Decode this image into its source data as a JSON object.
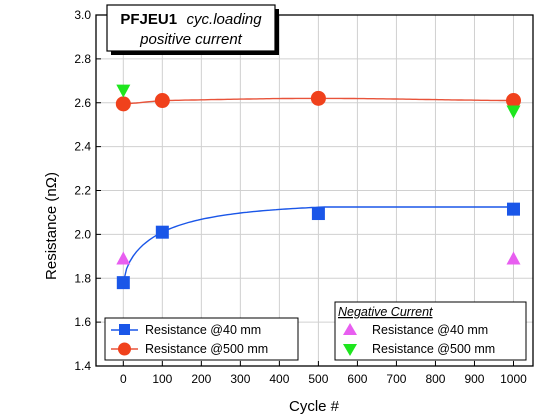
{
  "chart_data": {
    "type": "scatter",
    "title_bold": "PFJEU1",
    "title_italic_1": "cyc.loading",
    "title_italic_2": "positive current",
    "xlabel": "Cycle #",
    "ylabel": "Resistance (nΩ)",
    "xlim": [
      -70,
      1050
    ],
    "ylim": [
      1.4,
      3.0
    ],
    "x_ticks": [
      0,
      100,
      200,
      300,
      400,
      500,
      600,
      700,
      800,
      900,
      1000
    ],
    "y_ticks": [
      1.4,
      1.6,
      1.8,
      2.0,
      2.2,
      2.4,
      2.6,
      2.8,
      3.0
    ],
    "grid": true,
    "positive_legend_placement": "bottom-left",
    "negative_legend_title": "Negative Current",
    "negative_legend_placement": "bottom-right",
    "series": [
      {
        "name": "Resistance @40 mm",
        "group": "positive",
        "marker": "square",
        "color": "#1a56e8",
        "fit_line": true,
        "x": [
          0,
          100,
          500,
          1000
        ],
        "y": [
          1.78,
          2.01,
          2.095,
          2.115
        ]
      },
      {
        "name": "Resistance @500 mm",
        "group": "positive",
        "marker": "circle",
        "color": "#f0411c",
        "line_color": "#e8533a",
        "fit_line": true,
        "x": [
          0,
          100,
          500,
          1000
        ],
        "y": [
          2.595,
          2.61,
          2.62,
          2.61
        ]
      },
      {
        "name": "Resistance @40 mm",
        "group": "negative",
        "marker": "triangle-up",
        "color": "#e85ef0",
        "fit_line": false,
        "x": [
          0,
          1000
        ],
        "y": [
          1.89,
          1.89
        ]
      },
      {
        "name": "Resistance @500 mm",
        "group": "negative",
        "marker": "triangle-down",
        "color": "#1ee61e",
        "fit_line": false,
        "x": [
          0,
          1000
        ],
        "y": [
          2.655,
          2.56
        ]
      }
    ]
  }
}
